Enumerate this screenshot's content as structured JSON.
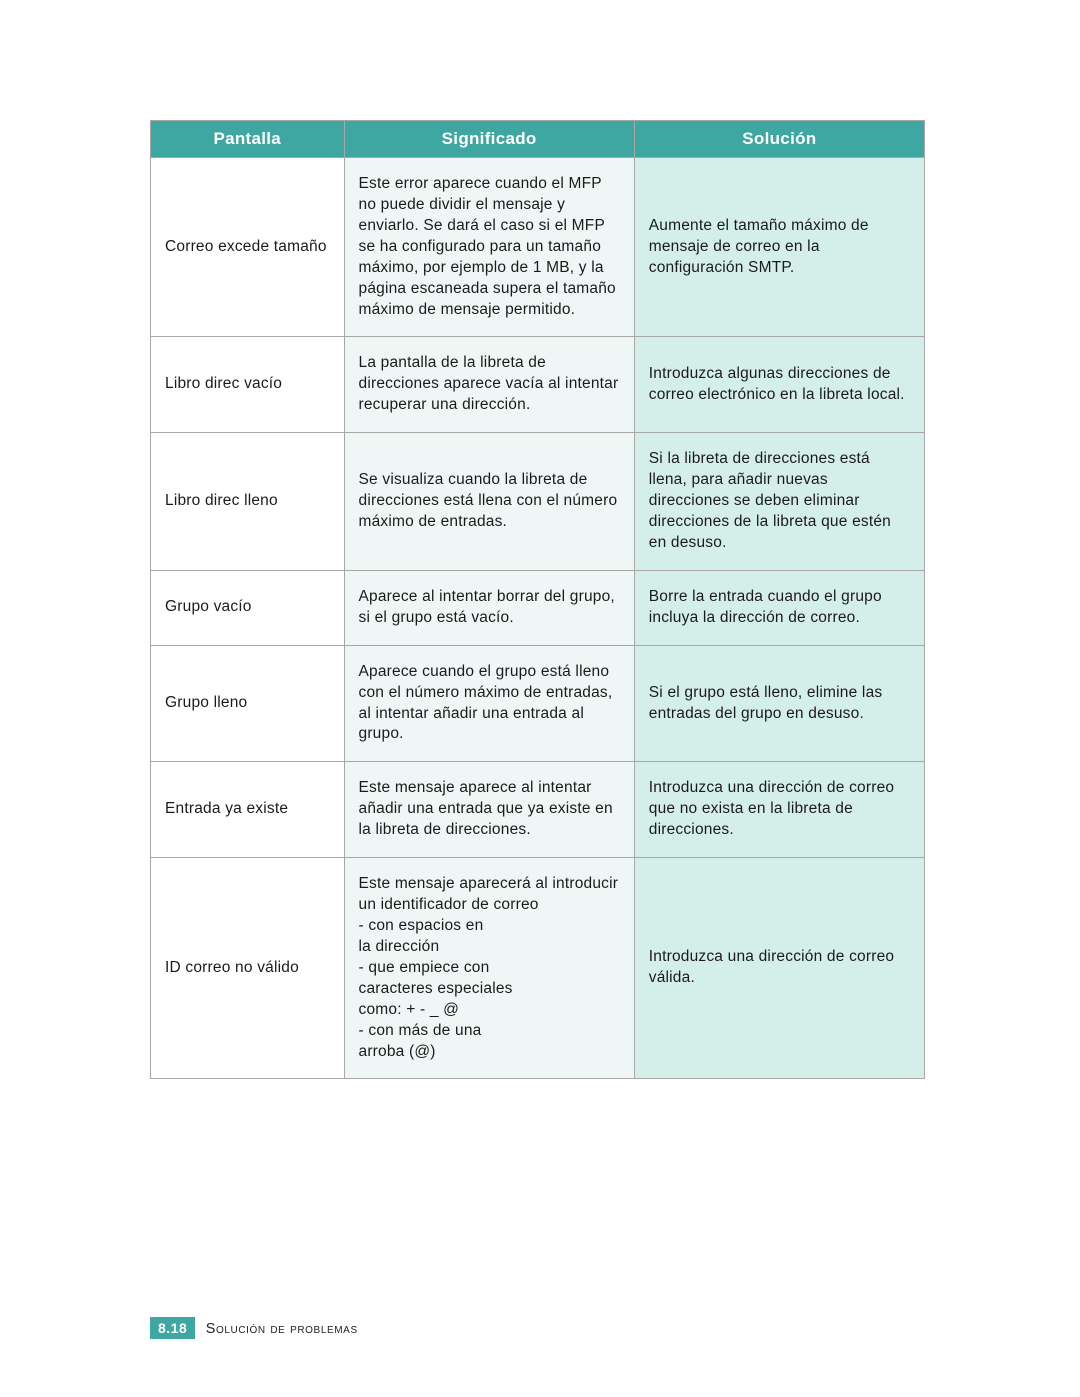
{
  "table": {
    "columns": [
      "Pantalla",
      "Significado",
      "Solución"
    ],
    "rows": [
      {
        "pantalla": "Correo excede tamaño",
        "significado": "Este error aparece cuando el MFP no puede dividir el mensaje y enviarlo. Se dará el caso si el MFP se ha configurado para un tamaño máximo, por ejemplo de 1 MB, y la página escaneada supera el tamaño máximo de mensaje permitido.",
        "solucion": "Aumente el tamaño máximo de mensaje de correo en la configuración SMTP."
      },
      {
        "pantalla": "Libro direc vacío",
        "significado": "La pantalla de la libreta de direcciones aparece vacía al intentar recuperar una dirección.",
        "solucion": "Introduzca algunas direcciones de correo electrónico en la libreta local."
      },
      {
        "pantalla": "Libro direc lleno",
        "significado": "Se visualiza cuando la libreta de direcciones está llena con el número máximo de entradas.",
        "solucion": "Si la libreta de direcciones está llena, para añadir nuevas direcciones se deben eliminar direcciones de la libreta que estén en desuso."
      },
      {
        "pantalla": "Grupo vacío",
        "significado": "Aparece al intentar borrar del grupo, si el grupo está vacío.",
        "solucion": "Borre la entrada cuando el grupo incluya la dirección de correo."
      },
      {
        "pantalla": "Grupo lleno",
        "significado": "Aparece cuando el grupo está lleno con el número máximo de entradas, al intentar añadir una entrada al grupo.",
        "solucion": "Si el grupo está lleno, elimine las entradas del grupo en desuso."
      },
      {
        "pantalla": "Entrada ya existe",
        "significado": "Este mensaje aparece al intentar añadir una entrada que ya existe en la libreta de direcciones.",
        "solucion": "Introduzca una dirección de correo que no exista en la libreta de direcciones."
      },
      {
        "pantalla": "ID correo no válido",
        "significado": "Este mensaje aparecerá al introducir un identificador de correo\n- con espacios en\n  la dirección\n- que empiece con\n  caracteres especiales\n  como: + - _ @\n- con más de una\n  arroba (@)",
        "solucion": "Introduzca una dirección de correo válida."
      }
    ]
  },
  "footer": {
    "page_number": "8.18",
    "section": "Solución de problemas"
  },
  "styling": {
    "header_bg": "#3ea7a1",
    "header_text_color": "#ffffff",
    "col3_bg": "#d4eeea",
    "col2_bg": "#eef7f5",
    "col1_bg": "#ffffff",
    "border_color": "#a8a8a4",
    "body_font_size": 15.5,
    "header_font_size": 17
  }
}
